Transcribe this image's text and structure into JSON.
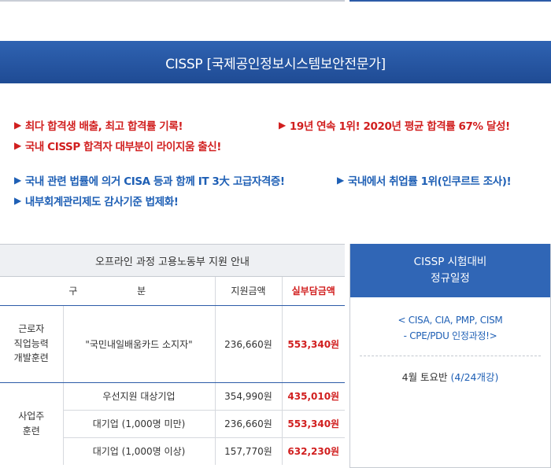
{
  "banner": {
    "title": "CISSP  [국제공인정보시스템보안전문가]"
  },
  "highlights_red": [
    "최다 합격생 배출, 최고 합격률 기록!",
    "19년 연속 1위! 2020년 평균 합격률 67% 달성!",
    "국내 CISSP 합격자 대부분이 라이지움 출신!"
  ],
  "highlights_blue": [
    "국내 관련 법률에 의거 CISA 등과 함께 IT 3大 고급자격증!",
    "국내에서 취업률 1위(인쿠르트 조사)!",
    "내부회계관리제도 감사기준 법제화!"
  ],
  "bullet": "▶",
  "support_table": {
    "title": "오프라인 과정 고용노동부 지원 안내",
    "headers": {
      "category_a": "구",
      "category_b": "분",
      "support": "지원금액",
      "actual": "실부담금액"
    },
    "group1": {
      "name": "근로자\n직업능력\n개발훈련",
      "rows": [
        {
          "label": "\"국민내일배움카드 소지자\"",
          "support": "236,660원",
          "actual": "553,340원"
        }
      ]
    },
    "group2": {
      "name": "사업주\n훈련",
      "rows": [
        {
          "label": "우선지원 대상기업",
          "support": "354,990원",
          "actual": "435,010원"
        },
        {
          "label": "대기업 (1,000명 미만)",
          "support": "236,660원",
          "actual": "553,340원"
        },
        {
          "label": "대기업 (1,000명 이상)",
          "support": "157,770원",
          "actual": "632,230원"
        }
      ]
    }
  },
  "schedule_box": {
    "title_line1": "CISSP 시험대비",
    "title_line2": "정규일정",
    "note_line1": "< CISA, CIA, PMP, CISM",
    "note_line2": "- CPE/PDU 인정과정!>",
    "schedule_label": "4월 토요반",
    "schedule_detail": "(4/24개강)"
  },
  "colors": {
    "banner": "#1f4b94",
    "red": "#d11f1f",
    "blue": "#1e5fb5"
  }
}
